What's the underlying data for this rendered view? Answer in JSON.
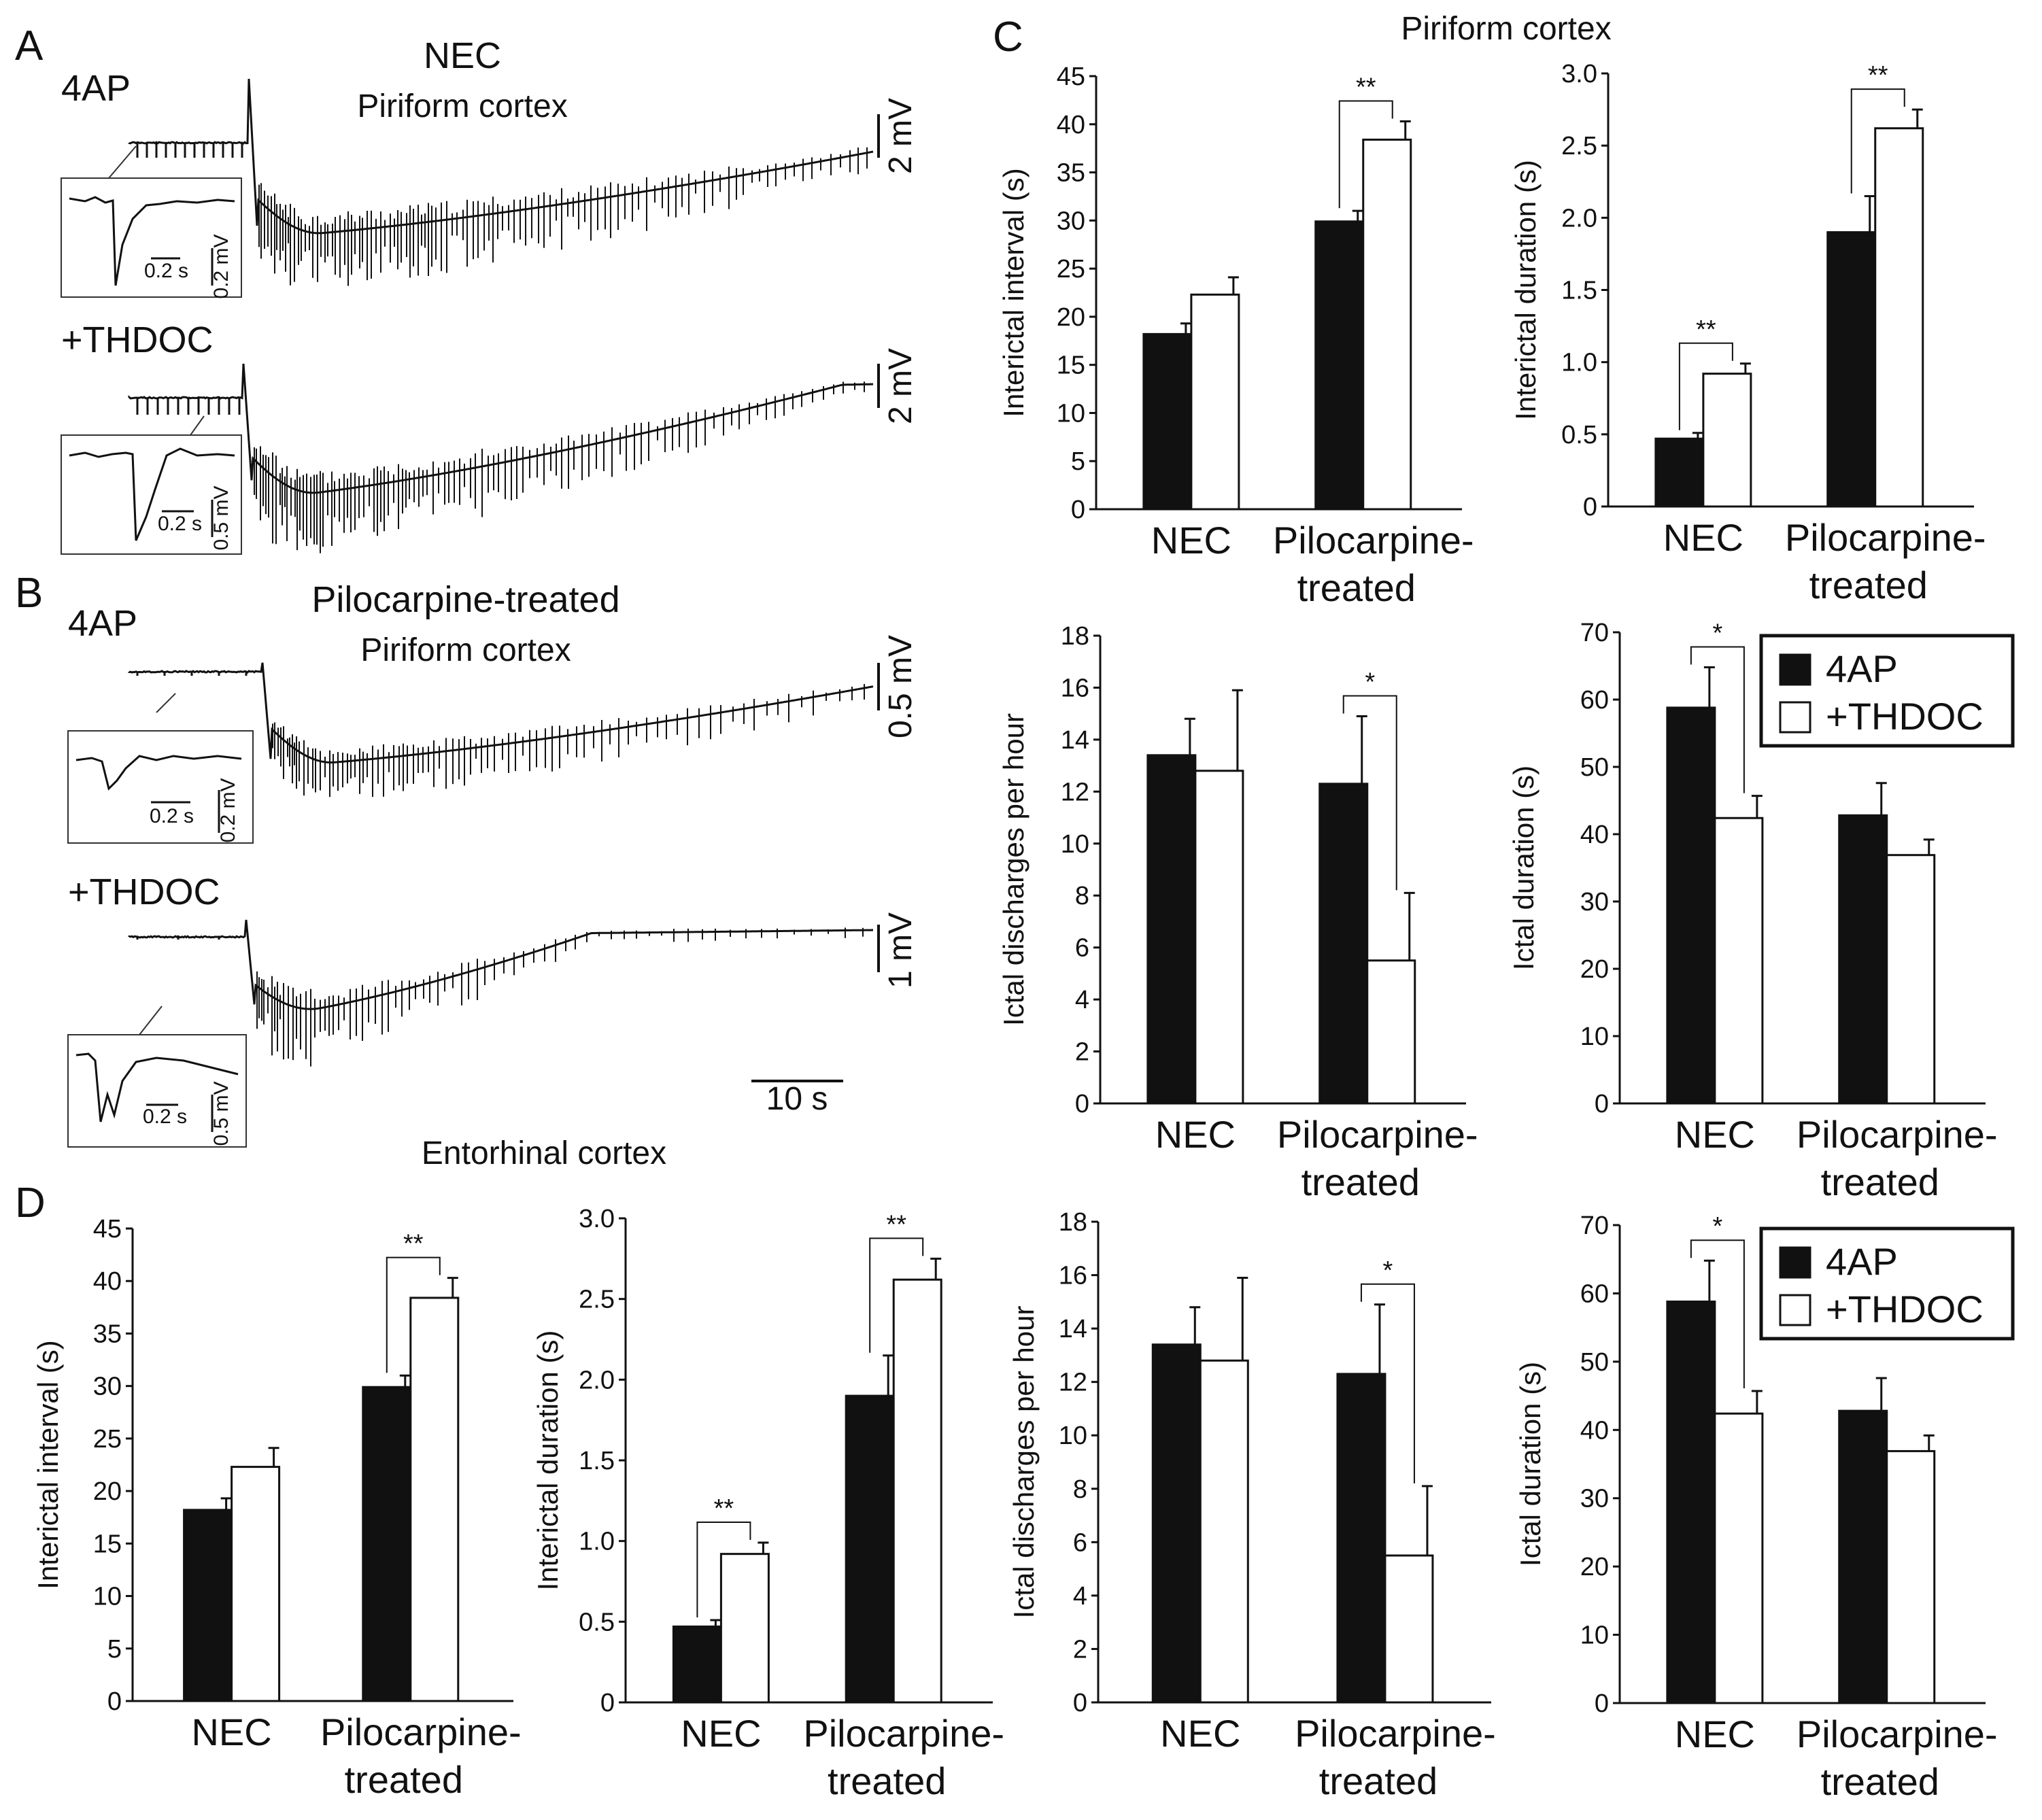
{
  "panel_letters": {
    "a": "A",
    "b": "B",
    "c": "C",
    "d": "D"
  },
  "traces": {
    "A": {
      "group": "NEC",
      "region": "Piriform cortex",
      "rows": [
        {
          "label": "4AP",
          "scale": "2 mV",
          "inset_time": "0.2 s",
          "inset_amp": "0.2 mV"
        },
        {
          "label": "+THDOC",
          "scale": "2 mV",
          "inset_time": "0.2 s",
          "inset_amp": "0.5 mV"
        }
      ]
    },
    "B": {
      "group": "Pilocarpine-treated",
      "region": "Piriform cortex",
      "rows": [
        {
          "label": "4AP",
          "scale": "0.5 mV",
          "inset_time": "0.2 s",
          "inset_amp": "0.2 mV"
        },
        {
          "label": "+THDOC",
          "scale": "1 mV",
          "inset_time": "0.2 s",
          "inset_amp": "0.5 mV"
        }
      ],
      "time_scale": "10 s"
    }
  },
  "section_titles": {
    "C": "Piriform cortex",
    "D": "Entorhinal cortex"
  },
  "legend": {
    "series1": "4AP",
    "series2": "+THDOC",
    "colors": {
      "4AP": "#111111",
      "+THDOC": "#ffffff"
    }
  },
  "categories": [
    "NEC",
    "Pilocarpine-treated"
  ],
  "chart_data": [
    {
      "id": "C1",
      "panel": "C",
      "type": "bar",
      "ylabel": "Interictal interval (s)",
      "ylim": [
        0,
        45
      ],
      "yticks": [
        "0",
        "5",
        "10",
        "15",
        "20",
        "25",
        "30",
        "35",
        "40",
        "45"
      ],
      "series": [
        {
          "name": "4AP",
          "values": [
            18.2,
            29.9
          ],
          "errors": [
            1.1,
            1.1
          ]
        },
        {
          "name": "+THDOC",
          "values": [
            22.3,
            38.4
          ],
          "errors": [
            1.8,
            1.9
          ]
        }
      ],
      "significance": [
        {
          "category": "Pilocarpine-treated",
          "label": "**"
        }
      ]
    },
    {
      "id": "C2",
      "panel": "C",
      "type": "bar",
      "ylabel": "Interictal duration (s)",
      "ylim": [
        0,
        3.0
      ],
      "yticks": [
        "0",
        "0.5",
        "1.0",
        "1.5",
        "2.0",
        "2.5",
        "3.0"
      ],
      "series": [
        {
          "name": "4AP",
          "values": [
            0.47,
            1.9
          ],
          "errors": [
            0.04,
            0.25
          ]
        },
        {
          "name": "+THDOC",
          "values": [
            0.92,
            2.62
          ],
          "errors": [
            0.07,
            0.13
          ]
        }
      ],
      "significance": [
        {
          "category": "NEC",
          "label": "**"
        },
        {
          "category": "Pilocarpine-treated",
          "label": "**"
        }
      ]
    },
    {
      "id": "C3",
      "panel": "C",
      "type": "bar",
      "ylabel": "Ictal discharges per hour",
      "ylim": [
        0,
        18
      ],
      "yticks": [
        "0",
        "2",
        "4",
        "6",
        "8",
        "10",
        "12",
        "14",
        "16",
        "18"
      ],
      "series": [
        {
          "name": "4AP",
          "values": [
            13.4,
            12.3
          ],
          "errors": [
            1.4,
            2.6
          ]
        },
        {
          "name": "+THDOC",
          "values": [
            12.8,
            5.5
          ],
          "errors": [
            3.1,
            2.6
          ]
        }
      ],
      "significance": [
        {
          "category": "Pilocarpine-treated",
          "label": "*"
        }
      ]
    },
    {
      "id": "C4",
      "panel": "C",
      "type": "bar",
      "ylabel": "Ictal duration (s)",
      "ylim": [
        0,
        70
      ],
      "yticks": [
        "0",
        "10",
        "20",
        "30",
        "40",
        "50",
        "60",
        "70"
      ],
      "series": [
        {
          "name": "4AP",
          "values": [
            58.8,
            42.8
          ],
          "errors": [
            6.0,
            4.8
          ]
        },
        {
          "name": "+THDOC",
          "values": [
            42.4,
            36.9
          ],
          "errors": [
            3.3,
            2.3
          ]
        }
      ],
      "significance": [
        {
          "category": "NEC",
          "label": "*"
        }
      ],
      "legend": true
    },
    {
      "id": "D1",
      "panel": "D",
      "type": "bar",
      "ylabel": "Interictal interval (s)",
      "ylim": [
        0,
        45
      ],
      "yticks": [
        "0",
        "5",
        "10",
        "15",
        "20",
        "25",
        "30",
        "35",
        "40",
        "45"
      ],
      "series": [
        {
          "name": "4AP",
          "values": [
            18.2,
            29.9
          ],
          "errors": [
            1.1,
            1.1
          ]
        },
        {
          "name": "+THDOC",
          "values": [
            22.3,
            38.4
          ],
          "errors": [
            1.8,
            1.9
          ]
        }
      ],
      "significance": [
        {
          "category": "Pilocarpine-treated",
          "label": "**"
        }
      ]
    },
    {
      "id": "D2",
      "panel": "D",
      "type": "bar",
      "ylabel": "Interictal duration (s)",
      "ylim": [
        0,
        3.0
      ],
      "yticks": [
        "0",
        "0.5",
        "1.0",
        "1.5",
        "2.0",
        "2.5",
        "3.0"
      ],
      "series": [
        {
          "name": "4AP",
          "values": [
            0.47,
            1.9
          ],
          "errors": [
            0.04,
            0.25
          ]
        },
        {
          "name": "+THDOC",
          "values": [
            0.92,
            2.62
          ],
          "errors": [
            0.07,
            0.13
          ]
        }
      ],
      "significance": [
        {
          "category": "NEC",
          "label": "**"
        },
        {
          "category": "Pilocarpine-treated",
          "label": "**"
        }
      ]
    },
    {
      "id": "D3",
      "panel": "D",
      "type": "bar",
      "ylabel": "Ictal discharges per hour",
      "ylim": [
        0,
        18
      ],
      "yticks": [
        "0",
        "2",
        "4",
        "6",
        "8",
        "10",
        "12",
        "14",
        "16",
        "18"
      ],
      "series": [
        {
          "name": "4AP",
          "values": [
            13.4,
            12.3
          ],
          "errors": [
            1.4,
            2.6
          ]
        },
        {
          "name": "+THDOC",
          "values": [
            12.8,
            5.5
          ],
          "errors": [
            3.1,
            2.6
          ]
        }
      ],
      "significance": [
        {
          "category": "Pilocarpine-treated",
          "label": "*"
        }
      ]
    },
    {
      "id": "D4",
      "panel": "D",
      "type": "bar",
      "ylabel": "Ictal duration (s)",
      "ylim": [
        0,
        70
      ],
      "yticks": [
        "0",
        "10",
        "20",
        "30",
        "40",
        "50",
        "60",
        "70"
      ],
      "series": [
        {
          "name": "4AP",
          "values": [
            58.8,
            42.8
          ],
          "errors": [
            6.0,
            4.8
          ]
        },
        {
          "name": "+THDOC",
          "values": [
            42.4,
            36.9
          ],
          "errors": [
            3.3,
            2.3
          ]
        }
      ],
      "significance": [
        {
          "category": "NEC",
          "label": "*"
        }
      ],
      "legend": true
    }
  ]
}
